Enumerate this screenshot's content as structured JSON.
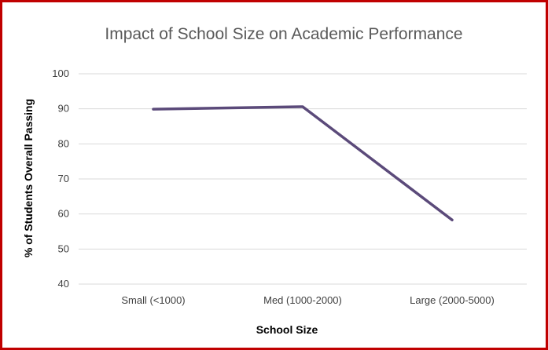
{
  "chart_data": {
    "type": "line",
    "title": "Impact of School Size on Academic Performance",
    "xlabel": "School Size",
    "ylabel": "% of Students Overall Passing",
    "categories": [
      "Small (<1000)",
      "Med (1000-2000)",
      "Large (2000-5000)"
    ],
    "series": [
      {
        "values": [
          89.9,
          90.6,
          58.3
        ],
        "color": "#5b4a7a"
      }
    ],
    "ylim": [
      40,
      100
    ],
    "yticks": [
      40,
      50,
      60,
      70,
      80,
      90,
      100
    ],
    "grid": true,
    "legend": "none"
  },
  "frame": {
    "border_color": "#c00000"
  }
}
